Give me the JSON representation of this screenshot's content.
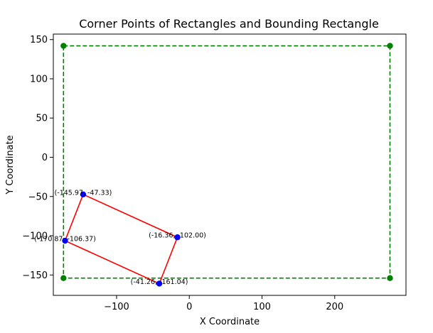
{
  "chart_data": {
    "type": "scatter",
    "title": "Corner Points of Rectangles and Bounding Rectangle",
    "xlabel": "X Coordinate",
    "ylabel": "Y Coordinate",
    "xlim": [
      -187,
      298
    ],
    "ylim": [
      -176,
      157
    ],
    "xticks": [
      -100,
      0,
      100,
      200
    ],
    "xtick_labels": [
      "−100",
      "0",
      "100",
      "200"
    ],
    "yticks": [
      -150,
      -100,
      -50,
      0,
      50,
      100,
      150
    ],
    "ytick_labels": [
      "−150",
      "−100",
      "−50",
      "0",
      "50",
      "100",
      "150"
    ],
    "grid": false,
    "series": [
      {
        "kind": "polygon",
        "color": "#ff0000",
        "style": "solid",
        "points": [
          {
            "x": -145.97,
            "y": -47.33
          },
          {
            "x": -16.36,
            "y": -102.0
          },
          {
            "x": -41.26,
            "y": -161.04
          },
          {
            "x": -170.87,
            "y": -106.37
          }
        ]
      },
      {
        "kind": "points",
        "color": "#0000ff",
        "points": [
          {
            "x": -145.97,
            "y": -47.33,
            "label": "(-145.97, -47.33)"
          },
          {
            "x": -16.36,
            "y": -102.0,
            "label": "(-16.36, -102.00)"
          },
          {
            "x": -41.26,
            "y": -161.04,
            "label": "(-41.26, -161.04)"
          },
          {
            "x": -170.87,
            "y": -106.37,
            "label": "(-170.87, -106.37)"
          }
        ]
      },
      {
        "kind": "bounding-rectangle",
        "color": "#008000",
        "style": "dashed",
        "points": [
          {
            "x": -173,
            "y": 142
          },
          {
            "x": 276,
            "y": 142
          },
          {
            "x": 276,
            "y": -154
          },
          {
            "x": -173,
            "y": -154
          }
        ]
      }
    ]
  }
}
